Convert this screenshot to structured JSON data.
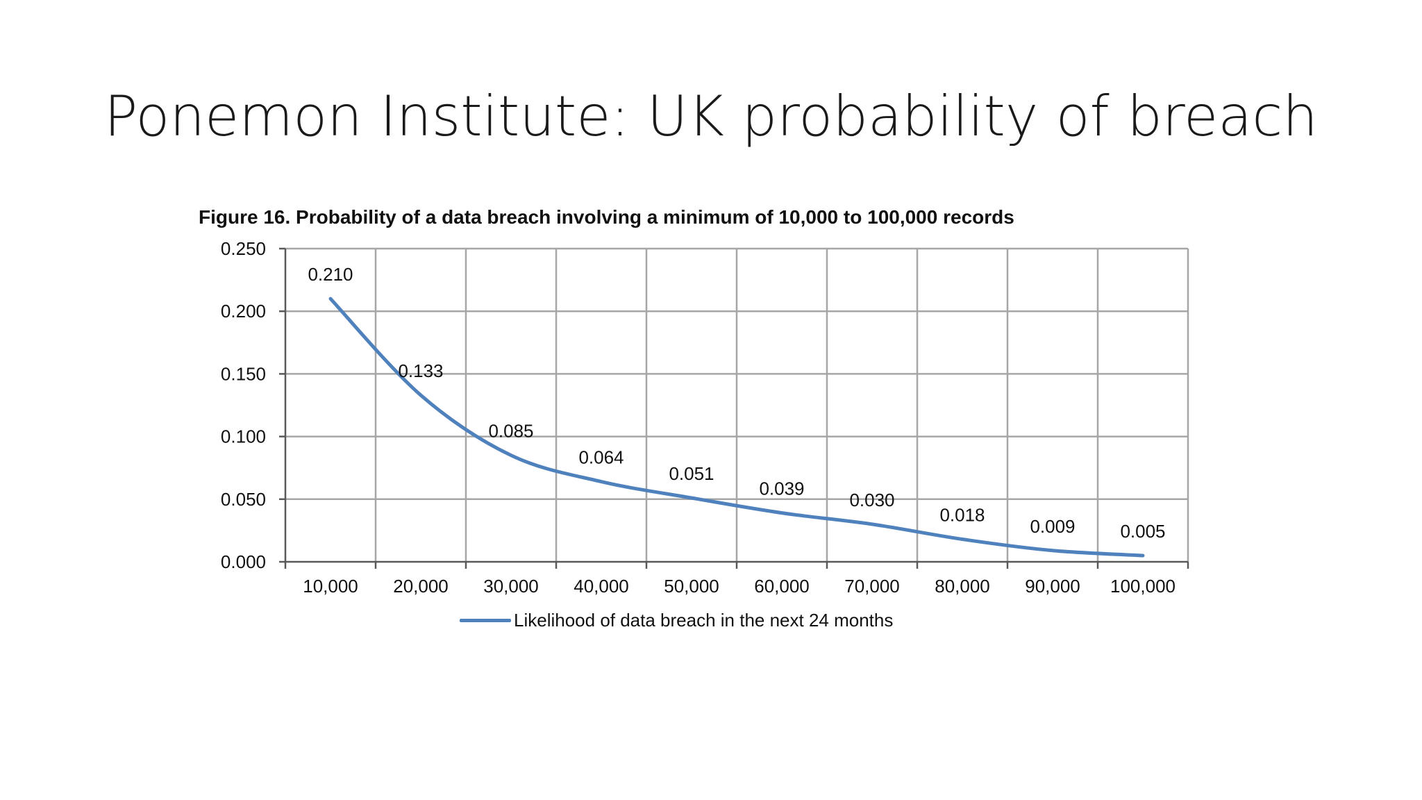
{
  "slide": {
    "title": "Ponemon Institute: UK probability of breach"
  },
  "chart_data": {
    "type": "line",
    "title": "Figure 16. Probability of a data breach involving a minimum of 10,000 to 100,000 records",
    "xlabel": "",
    "ylabel": "",
    "categories": [
      "10,000",
      "20,000",
      "30,000",
      "40,000",
      "50,000",
      "60,000",
      "70,000",
      "80,000",
      "90,000",
      "100,000"
    ],
    "y_ticks": [
      "0.000",
      "0.050",
      "0.100",
      "0.150",
      "0.200",
      "0.250"
    ],
    "ylim": [
      0,
      0.25
    ],
    "grid": true,
    "legend_position": "bottom",
    "series": [
      {
        "name": "Likelihood of data breach in the next 24 months",
        "values": [
          0.21,
          0.133,
          0.085,
          0.064,
          0.051,
          0.039,
          0.03,
          0.018,
          0.009,
          0.005
        ],
        "labels": [
          "0.210",
          "0.133",
          "0.085",
          "0.064",
          "0.051",
          "0.039",
          "0.030",
          "0.018",
          "0.009",
          "0.005"
        ],
        "color": "#4f81bd"
      }
    ],
    "colors": {
      "grid": "#a6a6a6",
      "axis": "#595959",
      "text": "#111111"
    }
  }
}
